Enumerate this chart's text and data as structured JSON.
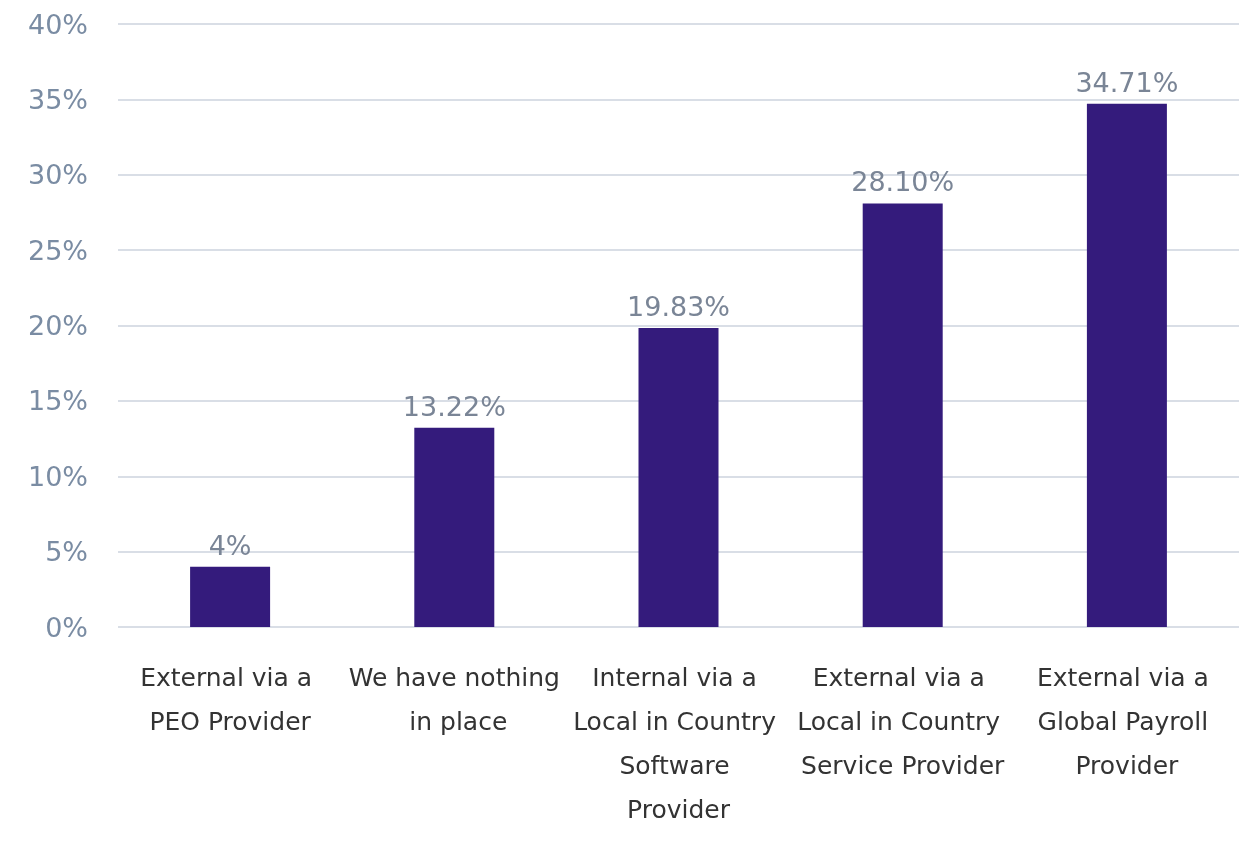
{
  "chart_data": {
    "type": "bar",
    "categories": [
      "External via a PEO Provider",
      "We have nothing in place",
      "Internal via a Local in Country Software Provider",
      "External via a Local in Country Service Provider",
      "External via a Global Payroll Provider"
    ],
    "values": [
      4,
      13.22,
      19.83,
      28.1,
      34.71
    ],
    "value_labels": [
      "4%",
      "13.22%",
      "19.83%",
      "28.10%",
      "34.71%"
    ],
    "color": "#341b7c",
    "ylim": [
      0,
      40
    ],
    "yticks": [
      {
        "value": 0,
        "label": "0%"
      },
      {
        "value": 5,
        "label": "5%"
      },
      {
        "value": 10,
        "label": "10%"
      },
      {
        "value": 15,
        "label": "15%"
      },
      {
        "value": 20,
        "label": "20%"
      },
      {
        "value": 25,
        "label": "25%"
      },
      {
        "value": 30,
        "label": "30%"
      },
      {
        "value": 35,
        "label": "35%"
      },
      {
        "value": 40,
        "label": "40%"
      }
    ],
    "grid": "y"
  }
}
